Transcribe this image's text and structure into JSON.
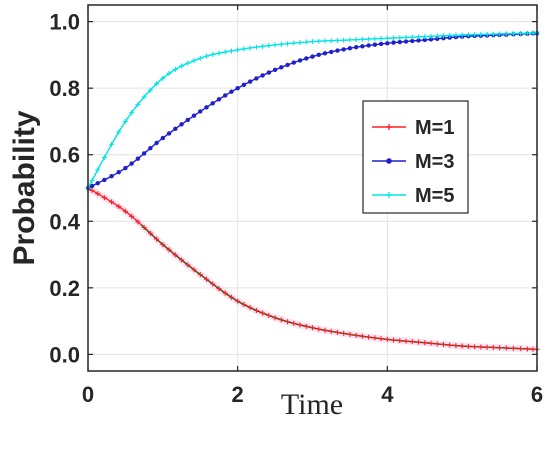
{
  "chart_data": {
    "type": "line",
    "xlabel": "Time",
    "ylabel": "Probability",
    "xlim": [
      0,
      6
    ],
    "ylim": [
      -0.05,
      1.05
    ],
    "xticks": [
      0,
      2,
      4,
      6
    ],
    "xtick_labels": [
      "0",
      "2",
      "4",
      "6"
    ],
    "yticks": [
      0.0,
      0.2,
      0.4,
      0.6,
      0.8,
      1.0
    ],
    "ytick_labels": [
      "0.0",
      "0.2",
      "0.4",
      "0.6",
      "0.8",
      "1.0"
    ],
    "grid": true,
    "legend_position": "center-right",
    "x": [
      0,
      0.5,
      1,
      1.5,
      2,
      2.5,
      3,
      3.5,
      4,
      4.5,
      5,
      5.5,
      6
    ],
    "series": [
      {
        "name": "M=1",
        "color": "#ff2020",
        "marker": "plus",
        "values": [
          0.5,
          0.43,
          0.33,
          0.24,
          0.16,
          0.11,
          0.08,
          0.06,
          0.045,
          0.035,
          0.025,
          0.02,
          0.015
        ]
      },
      {
        "name": "M=3",
        "color": "#1f1fd0",
        "marker": "dot",
        "values": [
          0.5,
          0.56,
          0.65,
          0.73,
          0.8,
          0.855,
          0.895,
          0.92,
          0.935,
          0.945,
          0.955,
          0.96,
          0.965
        ]
      },
      {
        "name": "M=5",
        "color": "#00e5e5",
        "marker": "plus",
        "values": [
          0.5,
          0.7,
          0.83,
          0.89,
          0.915,
          0.93,
          0.94,
          0.945,
          0.95,
          0.955,
          0.96,
          0.963,
          0.966
        ]
      }
    ]
  }
}
